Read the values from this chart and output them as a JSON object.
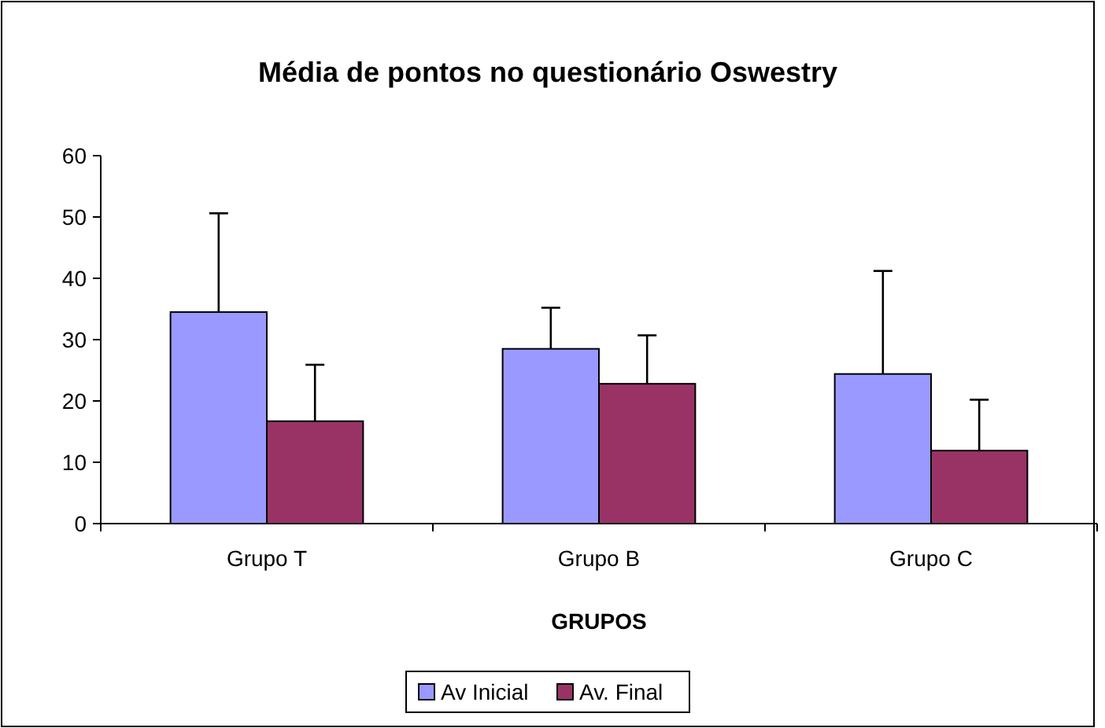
{
  "chart_data": {
    "type": "bar",
    "title": "Média de pontos no questionário Oswestry",
    "xlabel": "GRUPOS",
    "categories": [
      "Grupo T",
      "Grupo B",
      "Grupo C"
    ],
    "series": [
      {
        "name": "Av Inicial",
        "color": "#9999ff",
        "values": [
          34.5,
          28.5,
          24.4
        ],
        "errors": [
          [
            34.5,
            50.6
          ],
          [
            28.5,
            35.2
          ],
          [
            24.4,
            41.2
          ]
        ]
      },
      {
        "name": "Av. Final",
        "color": "#993366",
        "values": [
          16.7,
          22.8,
          11.9
        ],
        "errors": [
          [
            16.7,
            25.9
          ],
          [
            22.8,
            30.7
          ],
          [
            11.9,
            20.2
          ]
        ]
      }
    ],
    "ylim": [
      0,
      60
    ],
    "yticks": [
      0,
      10,
      20,
      30,
      40,
      50,
      60
    ],
    "grid": false,
    "legend": "bottom"
  }
}
